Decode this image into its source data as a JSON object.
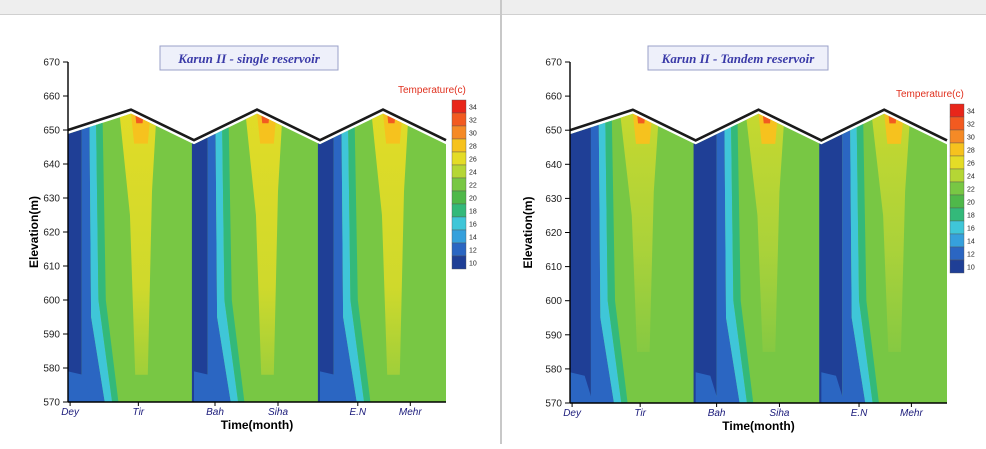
{
  "window_titles": [
    "",
    ""
  ],
  "chart_data": [
    {
      "type": "heatmap",
      "title": "Karun II - single reservoir",
      "xlabel": "Time(month)",
      "ylabel": "Elevation(m)",
      "x_ticks": [
        "Dey",
        "Tir",
        "Bah",
        "Siha",
        "E.N",
        "Mehr"
      ],
      "y_ticks": [
        570,
        580,
        590,
        600,
        610,
        620,
        630,
        640,
        650,
        660,
        670
      ],
      "ylim": [
        570,
        670
      ],
      "colorbar": {
        "title": "Temperature(c)",
        "labels": [
          34,
          32,
          30,
          28,
          26,
          24,
          22,
          20,
          18,
          16,
          14,
          12,
          10
        ],
        "colors": [
          "#e8261a",
          "#f25a20",
          "#f58a26",
          "#f6c21e",
          "#e4dc26",
          "#b5d635",
          "#78c744",
          "#4fb84a",
          "#33b97a",
          "#3fc6d8",
          "#36a0dc",
          "#2b66c2",
          "#1f3f96"
        ]
      },
      "water_surface_elev": [
        650,
        656,
        647,
        656,
        647,
        656,
        647
      ],
      "water_surface_months": [
        0,
        6,
        12,
        18,
        24,
        30,
        36
      ],
      "legend": "top-right"
    },
    {
      "type": "heatmap",
      "title": "Karun II - Tandem reservoir",
      "xlabel": "Time(month)",
      "ylabel": "Elevation(m)",
      "x_ticks": [
        "Dey",
        "Tir",
        "Bah",
        "Siha",
        "E.N",
        "Mehr"
      ],
      "y_ticks": [
        570,
        580,
        590,
        600,
        610,
        620,
        630,
        640,
        650,
        660,
        670
      ],
      "ylim": [
        570,
        670
      ],
      "colorbar": {
        "title": "Temperature(c)",
        "labels": [
          34,
          32,
          30,
          28,
          26,
          24,
          22,
          20,
          18,
          16,
          14,
          12,
          10
        ],
        "colors": [
          "#e8261a",
          "#f25a20",
          "#f58a26",
          "#f6c21e",
          "#e4dc26",
          "#b5d635",
          "#78c744",
          "#4fb84a",
          "#33b97a",
          "#3fc6d8",
          "#36a0dc",
          "#2b66c2",
          "#1f3f96"
        ]
      },
      "water_surface_elev": [
        650,
        656,
        647,
        656,
        647,
        656,
        647
      ],
      "water_surface_months": [
        0,
        6,
        12,
        18,
        24,
        30,
        36
      ],
      "legend": "top-right"
    }
  ]
}
